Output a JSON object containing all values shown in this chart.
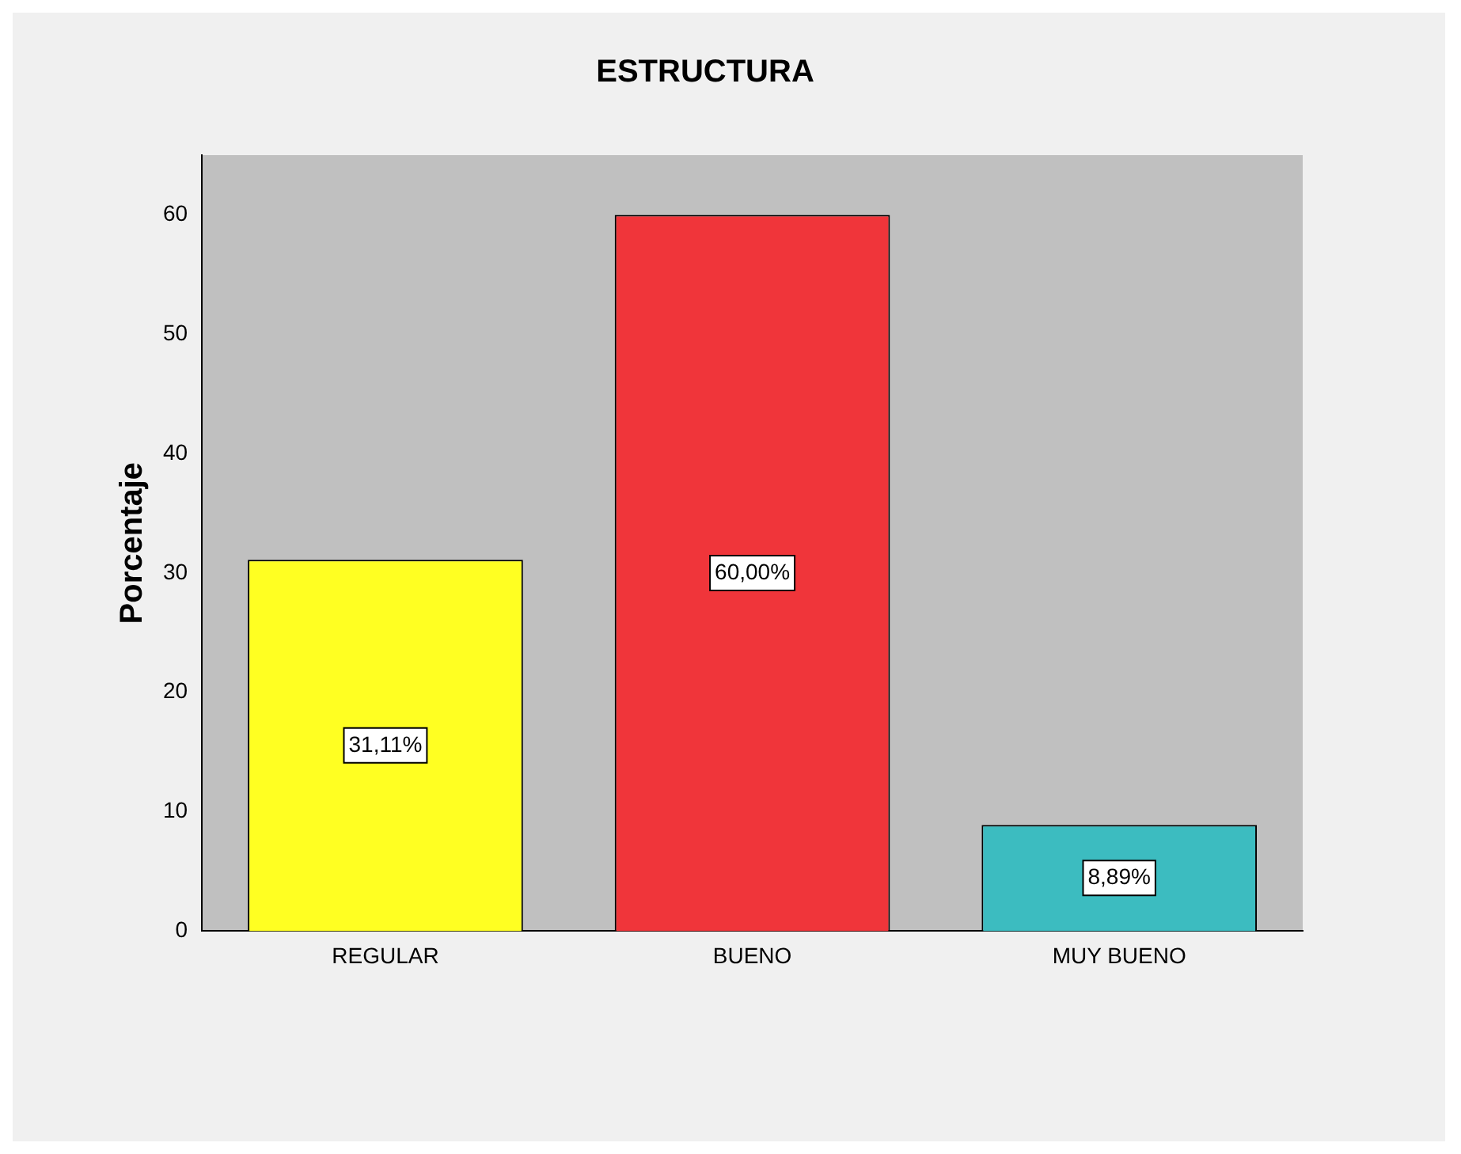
{
  "chart_data": {
    "type": "bar",
    "title": "ESTRUCTURA",
    "ylabel": "Porcentaje",
    "categories": [
      "REGULAR",
      "BUENO",
      "MUY BUENO"
    ],
    "values": [
      31.11,
      60,
      8.89
    ],
    "colors": [
      "#ffff22",
      "#f0353a",
      "#3cbcc0"
    ],
    "value_labels": [
      "31,11%",
      "60,00%",
      "8,89%"
    ],
    "ylim": [
      0,
      65
    ],
    "yticks": [
      0,
      10,
      20,
      30,
      40,
      50,
      60
    ],
    "grid": false,
    "legend": false
  }
}
